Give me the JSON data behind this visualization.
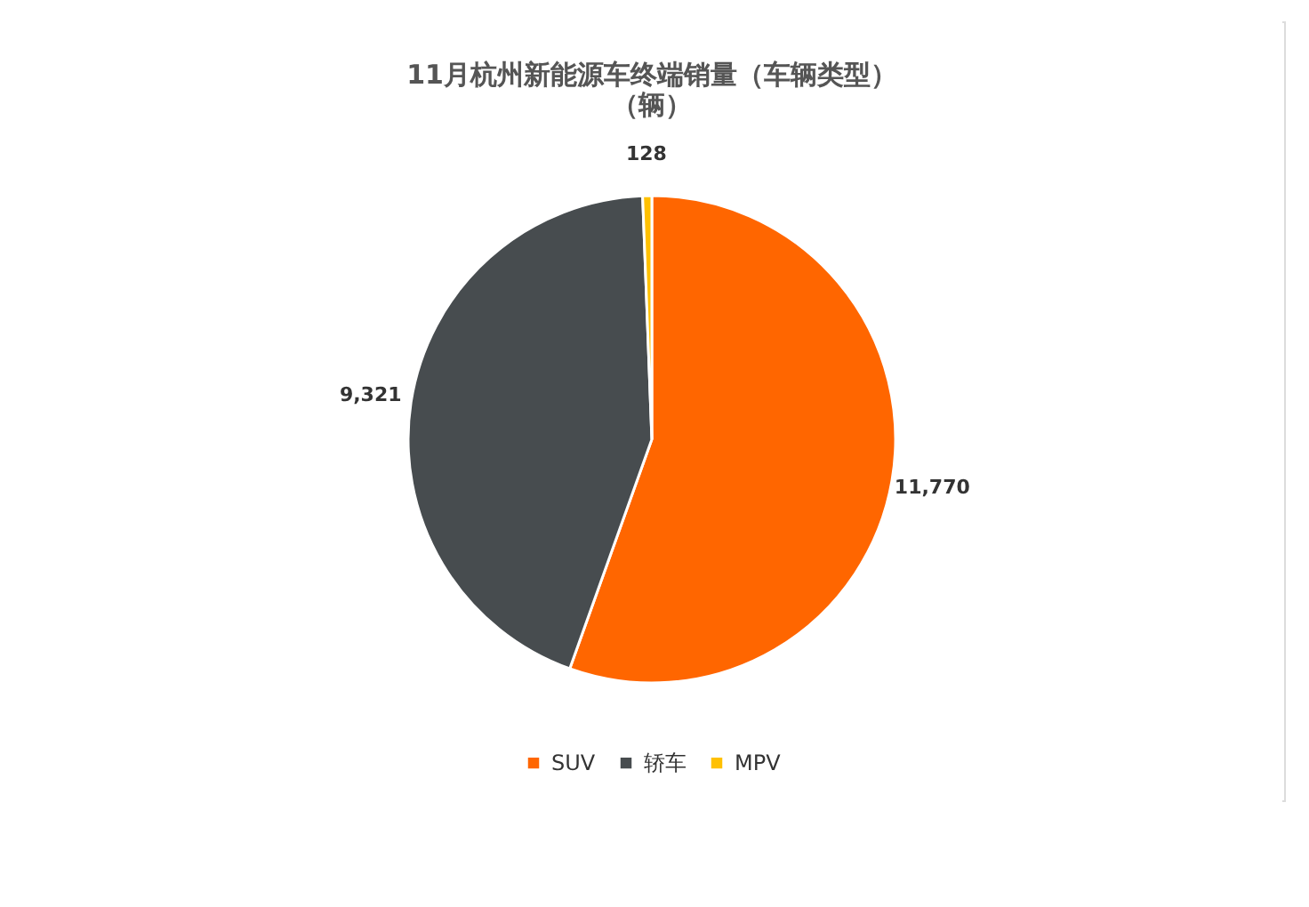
{
  "chart_data": {
    "type": "pie",
    "title": [
      "11月杭州新能源车终端销量（车辆类型）",
      "（辆）"
    ],
    "categories": [
      "SUV",
      "轿车",
      "MPV"
    ],
    "values": [
      11770,
      9321,
      128
    ],
    "colors": [
      "#ff6600",
      "#474c4f",
      "#ffc000"
    ],
    "value_labels": [
      "11,770",
      "9,321",
      "128"
    ],
    "legend": "bottom"
  }
}
